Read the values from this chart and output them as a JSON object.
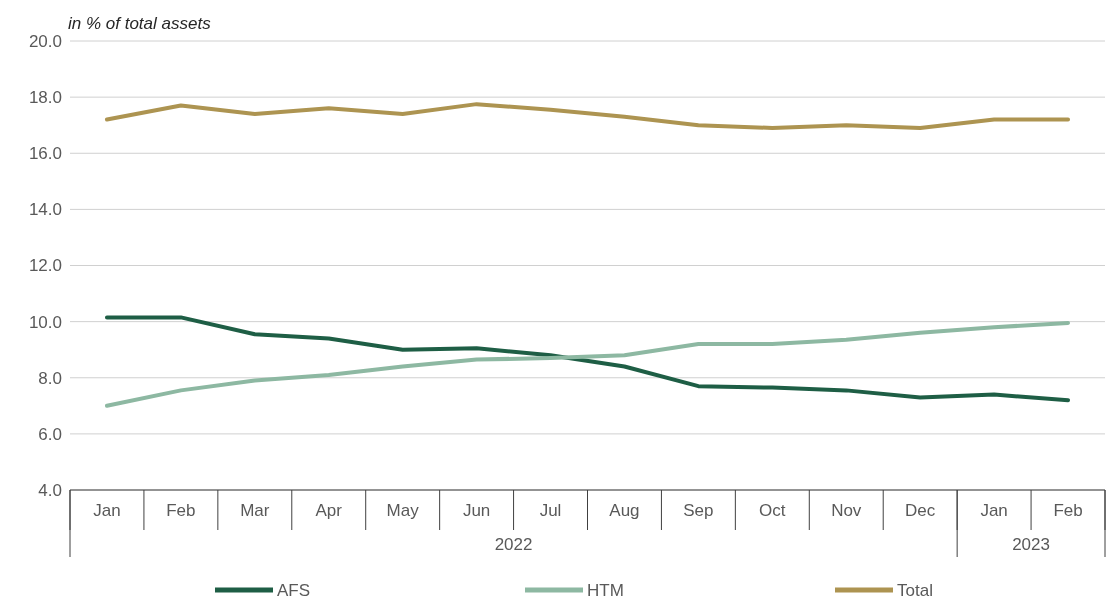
{
  "chart_data": {
    "type": "line",
    "ylabel": "in % of total assets",
    "categories": [
      "Jan",
      "Feb",
      "Mar",
      "Apr",
      "May",
      "Jun",
      "Jul",
      "Aug",
      "Sep",
      "Oct",
      "Nov",
      "Dec",
      "Jan",
      "Feb"
    ],
    "annotations": [
      "2022",
      "2023"
    ],
    "series": [
      {
        "name": "AFS",
        "color": "#1e5e45",
        "values": [
          10.15,
          10.15,
          9.55,
          9.4,
          9.0,
          9.05,
          8.8,
          8.4,
          7.7,
          7.65,
          7.55,
          7.3,
          7.4,
          7.2
        ]
      },
      {
        "name": "HTM",
        "color": "#8db8a2",
        "values": [
          7.0,
          7.55,
          7.9,
          8.1,
          8.4,
          8.65,
          8.7,
          8.8,
          9.2,
          9.2,
          9.35,
          9.6,
          9.8,
          9.95
        ]
      },
      {
        "name": "Total",
        "color": "#ad9451",
        "values": [
          17.2,
          17.7,
          17.4,
          17.6,
          17.4,
          17.75,
          17.55,
          17.3,
          17.0,
          16.9,
          17.0,
          16.9,
          17.2,
          17.2
        ]
      }
    ],
    "ylim": [
      4,
      20
    ],
    "yticks": [
      {
        "value": 4,
        "label": "4.0"
      },
      {
        "value": 6,
        "label": "6.0"
      },
      {
        "value": 8,
        "label": "8.0"
      },
      {
        "value": 10,
        "label": "10.0"
      },
      {
        "value": 12,
        "label": "12.0"
      },
      {
        "value": 14,
        "label": "14.0"
      },
      {
        "value": 16,
        "label": "16.0"
      },
      {
        "value": 18,
        "label": "18.0"
      },
      {
        "value": 20,
        "label": "20.0"
      }
    ],
    "grid": "y",
    "legend": "bottom",
    "marker": "none",
    "line_style": "solid"
  }
}
